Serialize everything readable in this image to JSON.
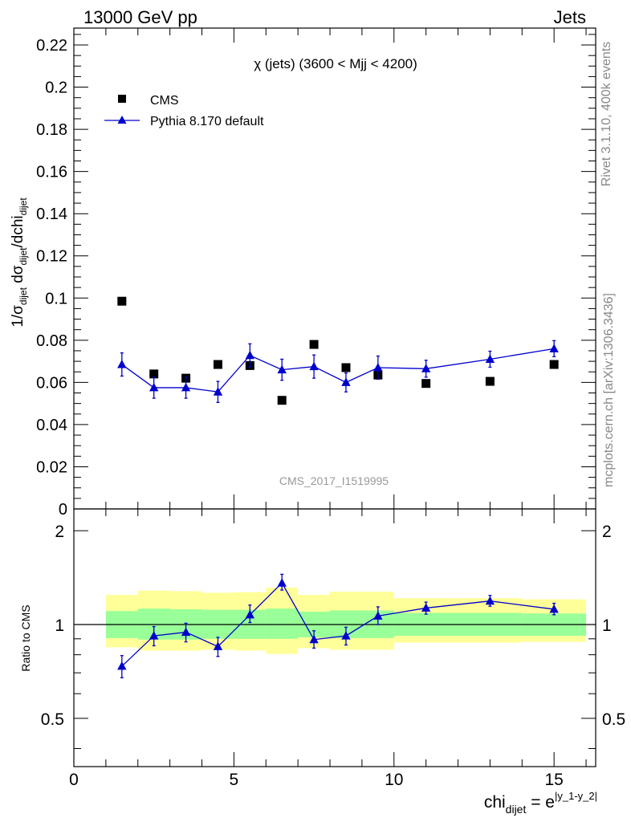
{
  "header": {
    "left_label": "13000 GeV pp",
    "right_label": "Jets"
  },
  "side_labels": {
    "rivet": "Rivet 3.1.10,  400k events",
    "mcplots": "mcplots.cern.ch [arXiv:1306.3436]"
  },
  "colors": {
    "cms": "#000000",
    "pythia": "#0000cc",
    "band_outer": "#ffff99",
    "band_inner": "#99ff99",
    "watermark": "#999999"
  },
  "chart_data": [
    {
      "type": "scatter",
      "panel": "main",
      "title": "χ (jets) (3600 < Mjj < 4200)",
      "ylabel": "1/σ_dijet dσ_dijet/dchi_dijet",
      "ylim": [
        0,
        0.228
      ],
      "yticks": [
        "0",
        "0.02",
        "0.04",
        "0.06",
        "0.08",
        "0.1",
        "0.12",
        "0.14",
        "0.16",
        "0.18",
        "0.2",
        "0.22"
      ],
      "watermark": "CMS_2017_I1519995",
      "legend_position": "top-left",
      "series": [
        {
          "name": "CMS",
          "marker": "square",
          "x": [
            1.5,
            2.5,
            3.5,
            4.5,
            5.5,
            6.5,
            7.5,
            8.5,
            9.5,
            11,
            13,
            15
          ],
          "y": [
            0.0985,
            0.064,
            0.062,
            0.0685,
            0.068,
            0.0515,
            0.078,
            0.067,
            0.0635,
            0.0595,
            0.0605,
            0.0685
          ]
        },
        {
          "name": "Pythia 8.170 default",
          "marker": "triangle",
          "line": true,
          "x": [
            1.5,
            2.5,
            3.5,
            4.5,
            5.5,
            6.5,
            7.5,
            8.5,
            9.5,
            11,
            13,
            15
          ],
          "y": [
            0.0685,
            0.0575,
            0.0575,
            0.0555,
            0.0728,
            0.066,
            0.0675,
            0.06,
            0.067,
            0.0665,
            0.071,
            0.076
          ],
          "err": [
            0.0055,
            0.005,
            0.005,
            0.005,
            0.0055,
            0.005,
            0.0055,
            0.0045,
            0.0055,
            0.004,
            0.0038,
            0.0038
          ]
        }
      ]
    },
    {
      "type": "line",
      "panel": "ratio",
      "ylabel": "Ratio to CMS",
      "log_y": true,
      "ylim": [
        0.35,
        2.35
      ],
      "yticks": [
        "0.5",
        "1",
        "2"
      ],
      "xlabel": "chi_dijet = e^|y_1-y_2|",
      "xlim": [
        0,
        16.3
      ],
      "xticks": [
        "0",
        "5",
        "10",
        "15"
      ],
      "bands": [
        {
          "x_lo": 1,
          "x_hi": 2,
          "inner": [
            0.905,
            1.105
          ],
          "outer": [
            0.845,
            1.245
          ]
        },
        {
          "x_lo": 2,
          "x_hi": 3,
          "inner": [
            0.895,
            1.125
          ],
          "outer": [
            0.825,
            1.285
          ]
        },
        {
          "x_lo": 3,
          "x_hi": 4,
          "inner": [
            0.895,
            1.12
          ],
          "outer": [
            0.825,
            1.28
          ]
        },
        {
          "x_lo": 4,
          "x_hi": 5,
          "inner": [
            0.9,
            1.115
          ],
          "outer": [
            0.83,
            1.265
          ]
        },
        {
          "x_lo": 5,
          "x_hi": 6,
          "inner": [
            0.9,
            1.115
          ],
          "outer": [
            0.825,
            1.27
          ]
        },
        {
          "x_lo": 6,
          "x_hi": 7,
          "inner": [
            0.9,
            1.125
          ],
          "outer": [
            0.805,
            1.315
          ]
        },
        {
          "x_lo": 7,
          "x_hi": 8,
          "inner": [
            0.91,
            1.1
          ],
          "outer": [
            0.84,
            1.245
          ]
        },
        {
          "x_lo": 8,
          "x_hi": 10,
          "inner": [
            0.905,
            1.11
          ],
          "outer": [
            0.83,
            1.275
          ]
        },
        {
          "x_lo": 10,
          "x_hi": 12,
          "inner": [
            0.92,
            1.09
          ],
          "outer": [
            0.875,
            1.215
          ]
        },
        {
          "x_lo": 12,
          "x_hi": 14,
          "inner": [
            0.92,
            1.09
          ],
          "outer": [
            0.875,
            1.215
          ]
        },
        {
          "x_lo": 14,
          "x_hi": 16,
          "inner": [
            0.92,
            1.085
          ],
          "outer": [
            0.88,
            1.205
          ]
        }
      ],
      "series": [
        {
          "name": "Pythia 8.170 default",
          "x": [
            1.5,
            2.5,
            3.5,
            4.5,
            5.5,
            6.5,
            7.5,
            8.5,
            9.5,
            11,
            13,
            15
          ],
          "y": [
            0.735,
            0.92,
            0.945,
            0.85,
            1.075,
            1.36,
            0.895,
            0.92,
            1.065,
            1.13,
            1.19,
            1.12
          ],
          "err_lo": [
            0.06,
            0.065,
            0.065,
            0.06,
            0.06,
            0.07,
            0.055,
            0.06,
            0.065,
            0.05,
            0.045,
            0.045
          ],
          "err_hi": [
            0.06,
            0.065,
            0.065,
            0.06,
            0.08,
            0.09,
            0.06,
            0.06,
            0.075,
            0.05,
            0.05,
            0.05
          ]
        }
      ]
    }
  ]
}
